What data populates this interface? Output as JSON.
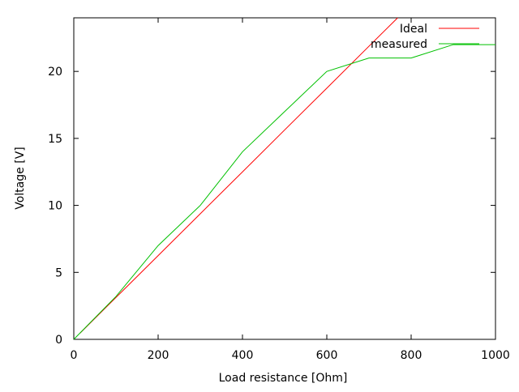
{
  "chart_data": {
    "type": "line",
    "title": "",
    "xlabel": "Load resistance [Ohm]",
    "ylabel": "Voltage [V]",
    "xlim": [
      0,
      1000
    ],
    "ylim": [
      0,
      24
    ],
    "xticks": [
      0,
      200,
      400,
      600,
      800,
      1000
    ],
    "yticks": [
      0,
      5,
      10,
      15,
      20
    ],
    "grid": false,
    "legend_position": "top-right",
    "series": [
      {
        "name": "Ideal",
        "color": "#ff0000",
        "x": [
          15,
          100,
          200,
          300,
          400,
          500,
          600,
          700,
          768
        ],
        "y": [
          0.47,
          3.13,
          6.25,
          9.38,
          12.5,
          15.63,
          18.75,
          21.88,
          24
        ]
      },
      {
        "name": "measured",
        "color": "#00c000",
        "x": [
          0,
          100,
          200,
          300,
          400,
          500,
          600,
          700,
          800,
          900,
          1000
        ],
        "y": [
          0,
          3.2,
          7,
          10,
          14,
          17,
          20,
          21,
          21,
          22,
          22
        ]
      }
    ]
  }
}
